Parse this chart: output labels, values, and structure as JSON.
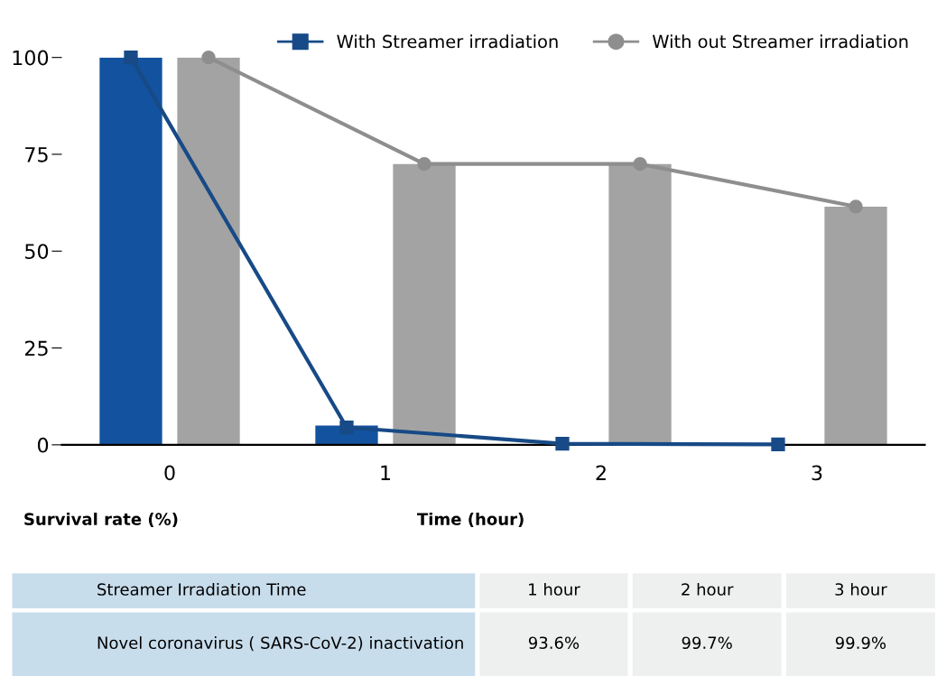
{
  "chart_data": {
    "type": "bar",
    "categories": [
      "0",
      "1",
      "2",
      "3"
    ],
    "xlabel": "Time (hour)",
    "ylabel": "Survival rate (%)",
    "ylim": [
      0,
      100
    ],
    "yticks": [
      0,
      25,
      50,
      75,
      100
    ],
    "grid": false,
    "legend": "top right",
    "series": [
      {
        "color": "#13529e",
        "values": [
          100,
          5,
          null,
          null
        ]
      },
      {
        "color": "#a3a3a3",
        "values": [
          100,
          72.5,
          72.5,
          61.5
        ]
      },
      {
        "type": "line",
        "name": "With Streamer irradiation",
        "color": "#174a86",
        "marker": "square",
        "values": [
          100,
          4.5,
          0.3,
          0.1
        ]
      },
      {
        "type": "line",
        "name": "With out Streamer irradiation",
        "color": "#8e8e8e",
        "marker": "circle",
        "values": [
          100,
          72.5,
          72.5,
          61.5
        ]
      }
    ],
    "annotations": [
      "Streamer Irradiation Time",
      "1 hour",
      "2 hour",
      "3 hour",
      "Novel coronavirus ( SARS-CoV-2) inactivation",
      "93.6%",
      "99.7%",
      "99.9%"
    ]
  }
}
